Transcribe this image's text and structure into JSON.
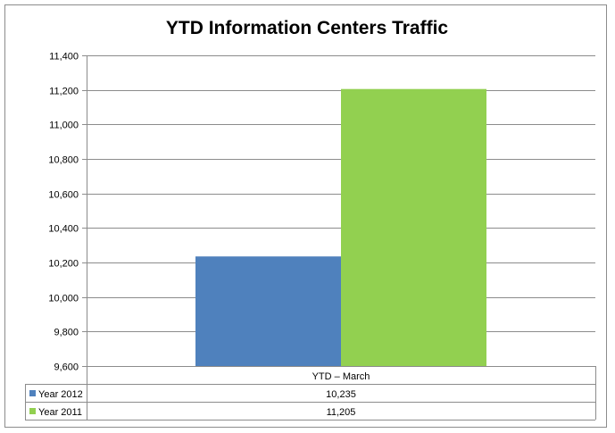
{
  "chart_data": {
    "type": "bar",
    "title": "YTD Information Centers Traffic",
    "categories": [
      "YTD – March"
    ],
    "series": [
      {
        "name": "Year 2012",
        "values": [
          10235
        ],
        "color": "#4f81bd"
      },
      {
        "name": "Year 2011",
        "values": [
          11205
        ],
        "color": "#92d050"
      }
    ],
    "ylim": [
      9600,
      11400
    ],
    "yticks": [
      "9,600",
      "9,800",
      "10,000",
      "10,200",
      "10,400",
      "10,600",
      "10,800",
      "11,000",
      "11,200",
      "11,400"
    ],
    "grid": true,
    "legend": "data-table",
    "data_table": {
      "header": "YTD – March",
      "rows": [
        {
          "label": "Year 2012",
          "value": "10,235"
        },
        {
          "label": "Year 2011",
          "value": "11,205"
        }
      ]
    }
  }
}
